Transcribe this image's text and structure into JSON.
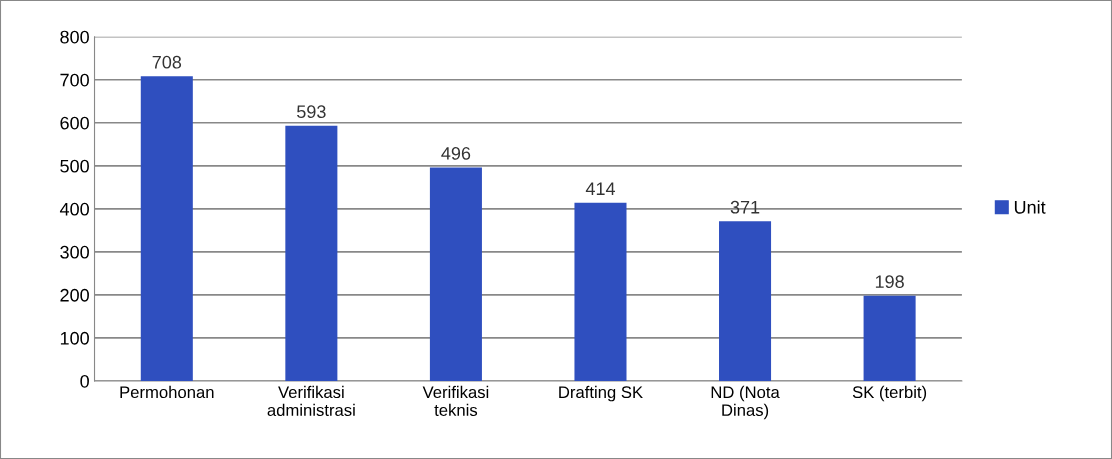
{
  "chart_data": {
    "type": "bar",
    "categories": [
      "Permohonan",
      "Verifikasi\nadministrasi",
      "Verifikasi\nteknis",
      "Drafting SK",
      "ND (Nota\nDinas)",
      "SK (terbit)"
    ],
    "series": [
      {
        "name": "Unit",
        "color": "#2f4fbf",
        "values": [
          708,
          593,
          496,
          414,
          371,
          198
        ]
      }
    ],
    "ylim": [
      0,
      800
    ],
    "yticks": [
      0,
      100,
      200,
      300,
      400,
      500,
      600,
      700,
      800
    ],
    "grid": "y",
    "legend": "right",
    "data_labels": true
  }
}
